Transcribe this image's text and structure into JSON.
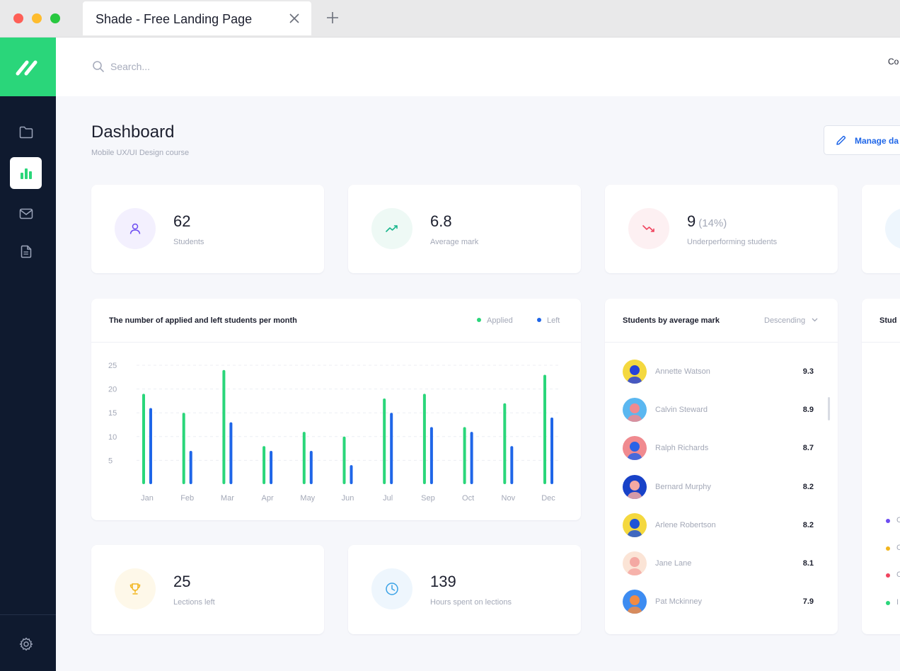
{
  "browser": {
    "tab_title": "Shade - Free Landing Page"
  },
  "search": {
    "placeholder": "Search..."
  },
  "header": {
    "right_text": "Co"
  },
  "page": {
    "title": "Dashboard",
    "subtitle": "Mobile UX/UI Design course",
    "manage_button": "Manage da"
  },
  "stats": [
    {
      "value": "62",
      "label": "Students",
      "icon": "user-icon",
      "color": "#6c4cf1",
      "bg": "#f3f0fe"
    },
    {
      "value": "6.8",
      "label": "Average mark",
      "icon": "trend-up-icon",
      "color": "#19b68c",
      "bg": "#eef9f5"
    },
    {
      "value": "9",
      "extra": "(14%)",
      "label": "Underperforming students",
      "icon": "trend-down-icon",
      "color": "#f0445f",
      "bg": "#fdf0f2"
    }
  ],
  "bottom_stats": [
    {
      "value": "25",
      "label": "Lections left",
      "icon": "trophy-icon",
      "color": "#f2b51d",
      "bg": "#fef8e9"
    },
    {
      "value": "139",
      "label": "Hours spent on lections",
      "icon": "clock-icon",
      "color": "#3aa2e6",
      "bg": "#eef6fd"
    }
  ],
  "chart": {
    "title": "The number of applied and left students per month",
    "legend_applied": "Applied",
    "legend_left": "Left"
  },
  "chart_data": {
    "type": "bar",
    "title": "The number of applied and left students per month",
    "categories": [
      "Jan",
      "Feb",
      "Mar",
      "Apr",
      "May",
      "Jun",
      "Jul",
      "Sep",
      "Oct",
      "Nov",
      "Dec"
    ],
    "series": [
      {
        "name": "Applied",
        "color": "#2ad67a",
        "values": [
          19,
          15,
          24,
          8,
          11,
          10,
          18,
          19,
          12,
          17,
          23
        ]
      },
      {
        "name": "Left",
        "color": "#1f66e8",
        "values": [
          16,
          7,
          13,
          7,
          7,
          4,
          15,
          12,
          11,
          8,
          14
        ]
      }
    ],
    "yticks": [
      5,
      10,
      15,
      20,
      25
    ],
    "ylim": [
      0,
      25
    ],
    "grid": true,
    "legend": "top-right"
  },
  "ranking": {
    "title": "Students by average mark",
    "sort": "Descending",
    "students": [
      {
        "name": "Annette Watson",
        "mark": "9.3",
        "ring": "#f4d83f",
        "face": "#2742d8"
      },
      {
        "name": "Calvin Steward",
        "mark": "8.9",
        "ring": "#5bb7f0",
        "face": "#f08a8f"
      },
      {
        "name": "Ralph Richards",
        "mark": "8.7",
        "ring": "#f08a8f",
        "face": "#2a63e6"
      },
      {
        "name": "Bernard Murphy",
        "mark": "8.2",
        "ring": "#1842c8",
        "face": "#f4a9a3"
      },
      {
        "name": "Arlene Robertson",
        "mark": "8.2",
        "ring": "#f4d83f",
        "face": "#1f53d6"
      },
      {
        "name": "Jane Lane",
        "mark": "8.1",
        "ring": "#fbe4d6",
        "face": "#f4a9a3"
      },
      {
        "name": "Pat Mckinney",
        "mark": "7.9",
        "ring": "#3d8cf1",
        "face": "#f28b43"
      }
    ]
  },
  "partial_card": {
    "title": "Stud",
    "items": [
      {
        "label": "C",
        "color": "#6c4cf1"
      },
      {
        "label": "C",
        "color": "#f2b51d"
      },
      {
        "label": "C",
        "color": "#f0445f"
      },
      {
        "label": "I",
        "color": "#2ad67a"
      }
    ]
  }
}
